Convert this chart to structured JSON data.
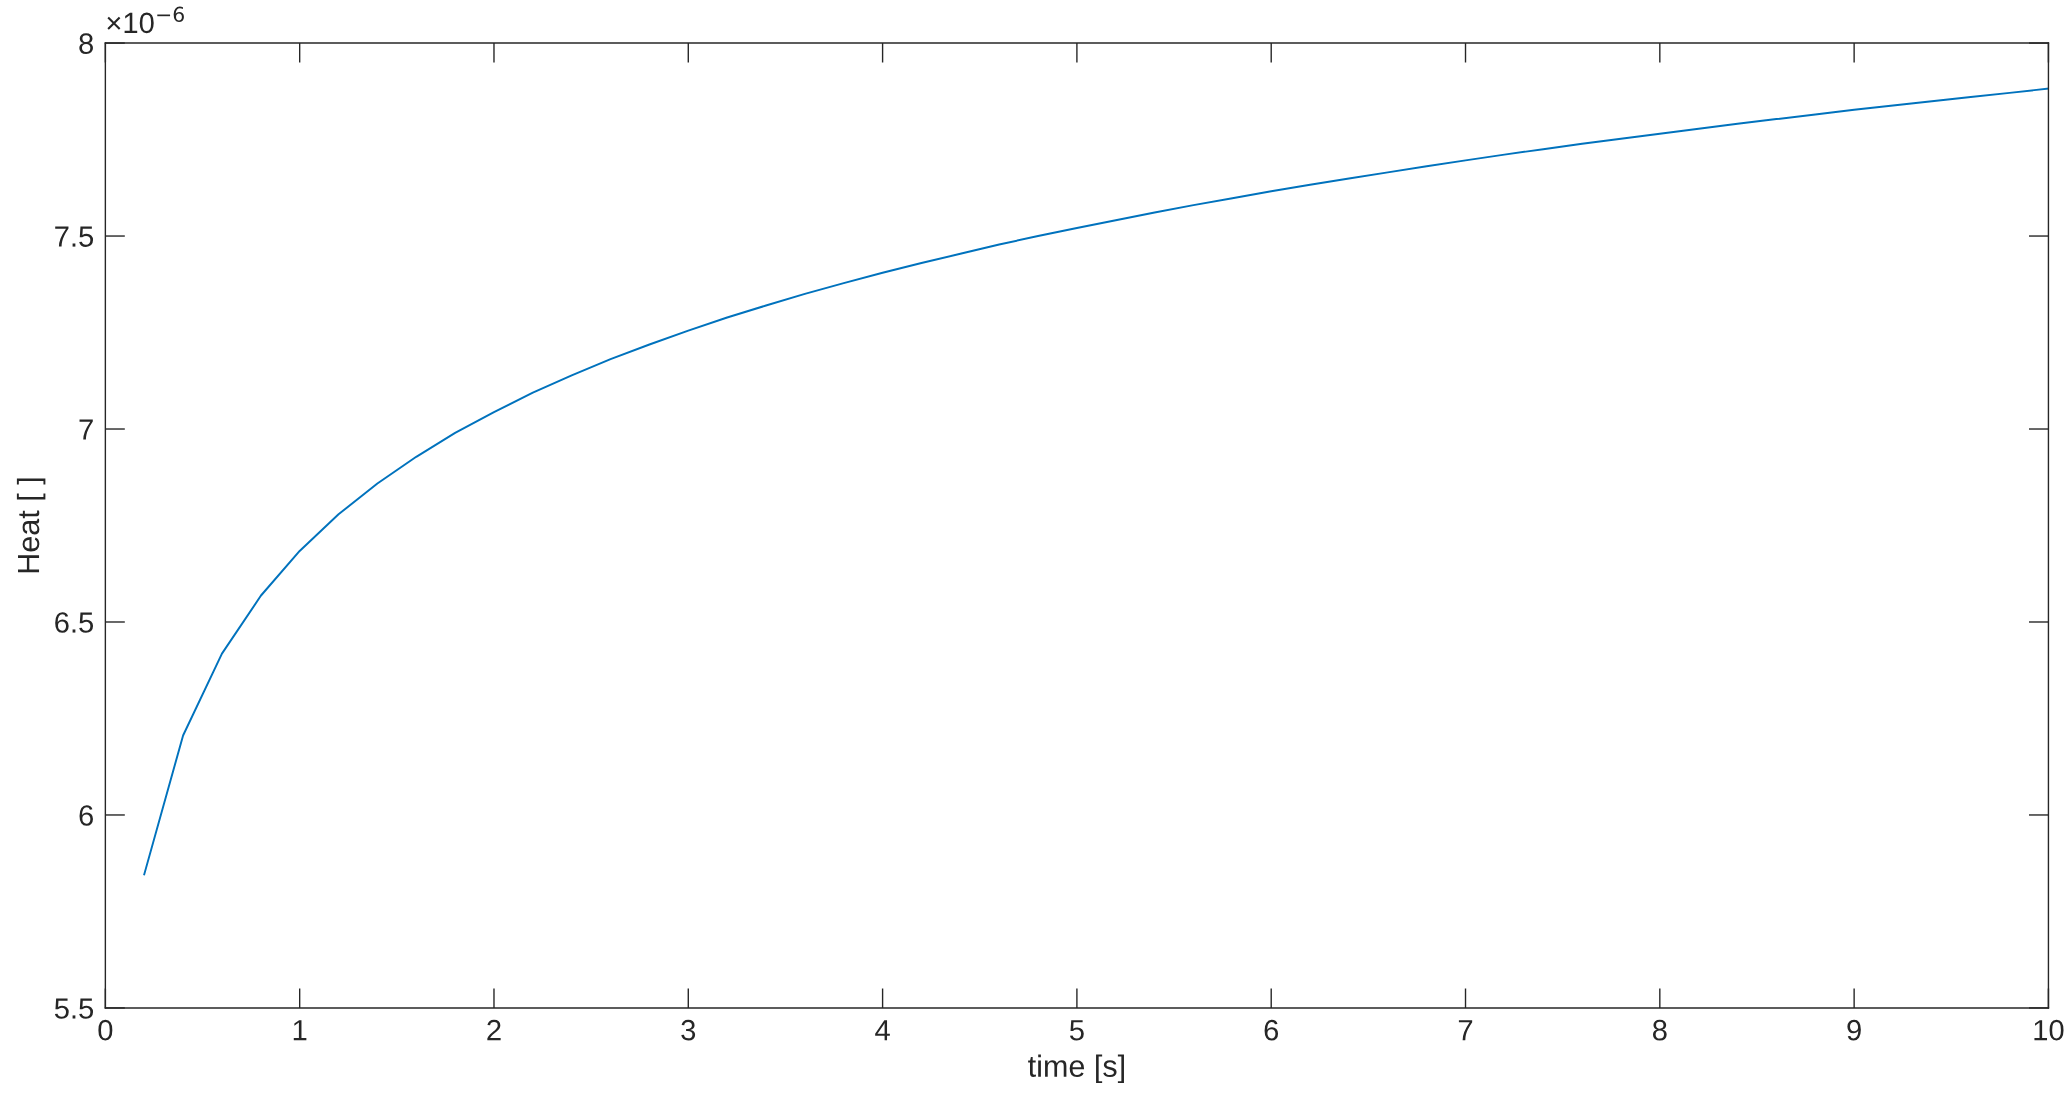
{
  "chart_data": {
    "type": "line",
    "xlabel": "time [s]",
    "ylabel": "Heat [ ]",
    "annotations": [
      "×10$^{−6}$"
    ],
    "x": [
      0.2,
      0.4,
      0.6,
      0.8,
      1.0,
      1.2,
      1.4,
      1.6,
      1.8,
      2.0,
      2.2,
      2.4,
      2.6,
      2.8,
      3.0,
      3.2,
      3.4,
      3.6,
      3.8,
      4.0,
      4.2,
      4.4,
      4.6,
      4.8,
      5.0,
      5.2,
      5.4,
      5.6,
      5.8,
      6.0,
      6.2,
      6.4,
      6.6,
      6.8,
      7.0,
      7.2,
      7.4,
      7.6,
      7.8,
      8.0,
      8.2,
      8.4,
      8.6,
      8.8,
      9.0,
      9.2,
      9.4,
      9.6,
      9.8,
      10.0
    ],
    "series": [
      {
        "color": "#0072bd",
        "values": [
          5.846,
          6.206,
          6.418,
          6.568,
          6.684,
          6.779,
          6.859,
          6.928,
          6.99,
          7.044,
          7.094,
          7.139,
          7.181,
          7.219,
          7.255,
          7.289,
          7.32,
          7.35,
          7.378,
          7.405,
          7.43,
          7.454,
          7.478,
          7.5,
          7.521,
          7.541,
          7.561,
          7.58,
          7.598,
          7.616,
          7.633,
          7.649,
          7.665,
          7.681,
          7.696,
          7.711,
          7.725,
          7.739,
          7.752,
          7.765,
          7.778,
          7.791,
          7.803,
          7.815,
          7.827,
          7.838,
          7.849,
          7.86,
          7.871,
          7.882
        ]
      }
    ],
    "xlim": [
      0,
      10
    ],
    "ylim": [
      5.5,
      8
    ],
    "xticks": [
      0,
      1,
      2,
      3,
      4,
      5,
      6,
      7,
      8,
      9,
      10
    ],
    "yticks": [
      5.5,
      6,
      6.5,
      7,
      7.5,
      8
    ],
    "line_style": "solid"
  }
}
